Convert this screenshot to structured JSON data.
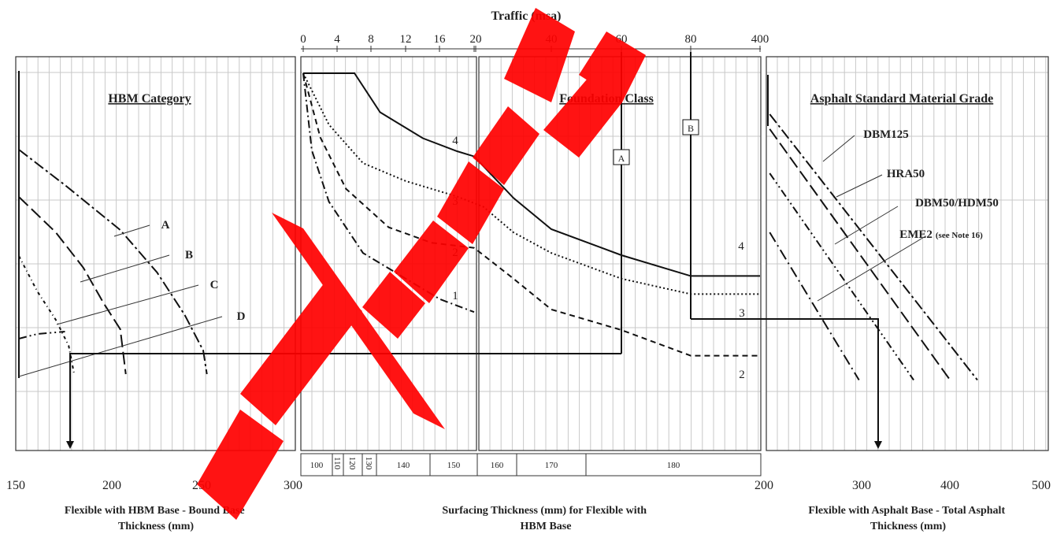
{
  "chart_data": {
    "type": "line",
    "title": "Traffic (msa)",
    "watermark": "WITHDRAWN",
    "colors": {
      "watermark": "#ff0000",
      "line": "#111111",
      "grid": "#c8c8c8"
    },
    "traffic_ticks_left": [
      "0",
      "4",
      "8",
      "12",
      "16",
      "20"
    ],
    "traffic_ticks_right": [
      "20",
      "40",
      "60",
      "80",
      "400"
    ],
    "surfacing_segments": [
      "100",
      "110",
      "120",
      "130",
      "140",
      "150",
      "160",
      "170",
      "180"
    ],
    "panels": {
      "hbm": {
        "heading": "HBM Category",
        "xlabel": "Flexible with HBM Base - Bound Base Thickness (mm)",
        "xticks": [
          "150",
          "200",
          "250",
          "300"
        ],
        "series": [
          {
            "name": "A",
            "points": [
              [
                150,
                0.1
              ],
              [
                175,
                0.25
              ],
              [
                205,
                0.44
              ],
              [
                225,
                0.62
              ],
              [
                240,
                0.8
              ],
              [
                250,
                0.95
              ],
              [
                252,
                1.05
              ]
            ]
          },
          {
            "name": "B",
            "points": [
              [
                150,
                0.3
              ],
              [
                170,
                0.45
              ],
              [
                185,
                0.6
              ],
              [
                196,
                0.75
              ],
              [
                205,
                0.86
              ],
              [
                208,
                1.05
              ]
            ]
          },
          {
            "name": "C",
            "points": [
              [
                150,
                0.55
              ],
              [
                160,
                0.7
              ],
              [
                170,
                0.82
              ],
              [
                177,
                0.93
              ],
              [
                180,
                1.05
              ]
            ]
          },
          {
            "name": "D",
            "points": [
              [
                150,
                0.9
              ],
              [
                160,
                0.88
              ],
              [
                175,
                0.87
              ]
            ]
          }
        ]
      },
      "surfacing": {
        "heading": "Foundation Class",
        "xlabel": "Surfacing Thickness (mm) for Flexible with HBM Base",
        "series": [
          {
            "name": "1",
            "points": [
              [
                0,
                0.0
              ],
              [
                1,
                0.3
              ],
              [
                3,
                0.5
              ],
              [
                7,
                0.7
              ],
              [
                12,
                0.8
              ],
              [
                16,
                0.88
              ],
              [
                20,
                0.93
              ]
            ]
          },
          {
            "name": "2",
            "points": [
              [
                0,
                0.0
              ],
              [
                2,
                0.25
              ],
              [
                5,
                0.45
              ],
              [
                10,
                0.6
              ],
              [
                15,
                0.66
              ],
              [
                20,
                0.68
              ],
              [
                30,
                0.8
              ],
              [
                40,
                0.92
              ],
              [
                60,
                1.0
              ],
              [
                80,
                1.1
              ],
              [
                400,
                1.1
              ]
            ]
          },
          {
            "name": "3",
            "points": [
              [
                0,
                0.0
              ],
              [
                3,
                0.2
              ],
              [
                7,
                0.35
              ],
              [
                12,
                0.42
              ],
              [
                18,
                0.48
              ],
              [
                22,
                0.52
              ],
              [
                30,
                0.62
              ],
              [
                40,
                0.7
              ],
              [
                60,
                0.8
              ],
              [
                80,
                0.86
              ],
              [
                400,
                0.86
              ]
            ]
          },
          {
            "name": "4",
            "points": [
              [
                0,
                -0.3
              ],
              [
                6,
                -0.3
              ],
              [
                9,
                -0.15
              ],
              [
                14,
                -0.05
              ],
              [
                18,
                0.0
              ],
              [
                20,
                0.02
              ],
              [
                30,
                0.18
              ],
              [
                40,
                0.3
              ],
              [
                60,
                0.4
              ],
              [
                80,
                0.48
              ],
              [
                400,
                0.48
              ]
            ]
          }
        ],
        "markers": [
          {
            "label": "A",
            "traffic": 60
          },
          {
            "label": "B",
            "traffic": 80
          }
        ]
      },
      "asphalt": {
        "heading": "Asphalt Standard Material Grade",
        "xlabel": "Flexible with Asphalt Base - Total Asphalt Thickness (mm)",
        "xticks": [
          "200",
          "300",
          "400",
          "500"
        ],
        "series": [
          {
            "name": "DBM125",
            "points": [
              [
                202,
                0.2
              ],
              [
                430,
                1.1
              ]
            ]
          },
          {
            "name": "HRA50",
            "points": [
              [
                202,
                0.25
              ],
              [
                400,
                1.1
              ]
            ]
          },
          {
            "name": "DBM50/HDM50",
            "points": [
              [
                202,
                0.4
              ],
              [
                360,
                1.1
              ]
            ]
          },
          {
            "name": "EME2",
            "note": "(see Note 16)",
            "points": [
              [
                202,
                0.6
              ],
              [
                300,
                1.1
              ]
            ]
          }
        ]
      }
    }
  }
}
